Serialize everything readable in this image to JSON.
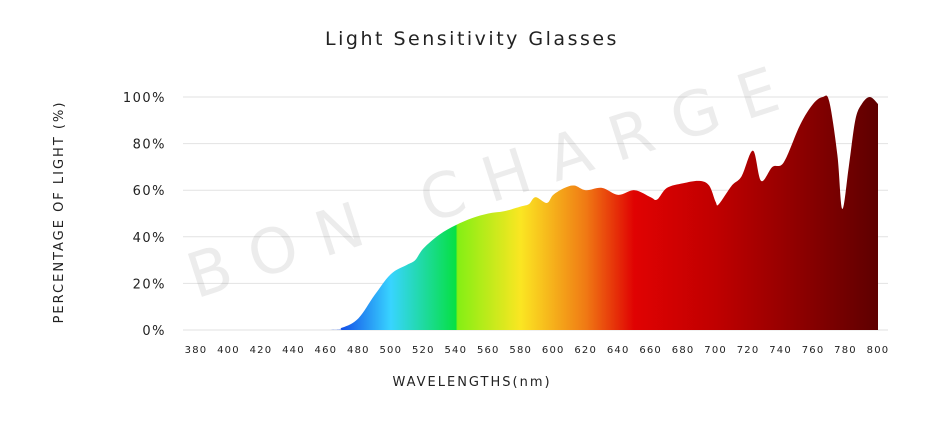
{
  "chart_data": {
    "type": "area",
    "title": "Light Sensitivity Glasses",
    "xlabel": "WAVELENGTHS(nm)",
    "ylabel": "PERCENTAGE OF LIGHT (%)",
    "xlim": [
      380,
      800
    ],
    "ylim": [
      0,
      100
    ],
    "grid": true,
    "x_ticks": [
      "380",
      "400",
      "420",
      "440",
      "460",
      "480",
      "500",
      "520",
      "540",
      "560",
      "580",
      "600",
      "620",
      "640",
      "660",
      "680",
      "700",
      "720",
      "740",
      "760",
      "780",
      "800"
    ],
    "y_ticks": [
      "0%",
      "20%",
      "40%",
      "60%",
      "80%",
      "100%"
    ],
    "watermark": "BON CHARGE",
    "x": [
      380,
      460,
      470,
      480,
      490,
      500,
      510,
      515,
      520,
      530,
      540,
      550,
      560,
      570,
      580,
      585,
      589,
      596,
      600,
      607,
      613,
      620,
      630,
      640,
      650,
      660,
      664,
      670,
      680,
      690,
      696,
      700,
      702,
      710,
      716,
      723,
      728,
      735,
      742,
      752,
      760,
      766,
      770,
      775,
      778,
      782,
      786,
      790,
      795,
      800
    ],
    "values": [
      0,
      0,
      1,
      5,
      15,
      24,
      28,
      30,
      35,
      41,
      45,
      48,
      50,
      51,
      53,
      54,
      57,
      54.5,
      58,
      61,
      62,
      60,
      61,
      58,
      60,
      57,
      56,
      61,
      63,
      64,
      62,
      55,
      54,
      62,
      66,
      77,
      64,
      70,
      72,
      88,
      97,
      100,
      98,
      75,
      52,
      70,
      90,
      97,
      100,
      97
    ],
    "colors": [
      {
        "nm": 470,
        "color": "#1552e8"
      },
      {
        "nm": 500,
        "color": "#38d4ff"
      },
      {
        "nm": 540,
        "color": "#06e043"
      },
      {
        "nm": 541,
        "color": "#84ef14"
      },
      {
        "nm": 580,
        "color": "#fbe622"
      },
      {
        "nm": 620,
        "color": "#f07a14"
      },
      {
        "nm": 650,
        "color": "#e00202"
      },
      {
        "nm": 700,
        "color": "#c00000"
      },
      {
        "nm": 800,
        "color": "#5e0000"
      }
    ]
  }
}
